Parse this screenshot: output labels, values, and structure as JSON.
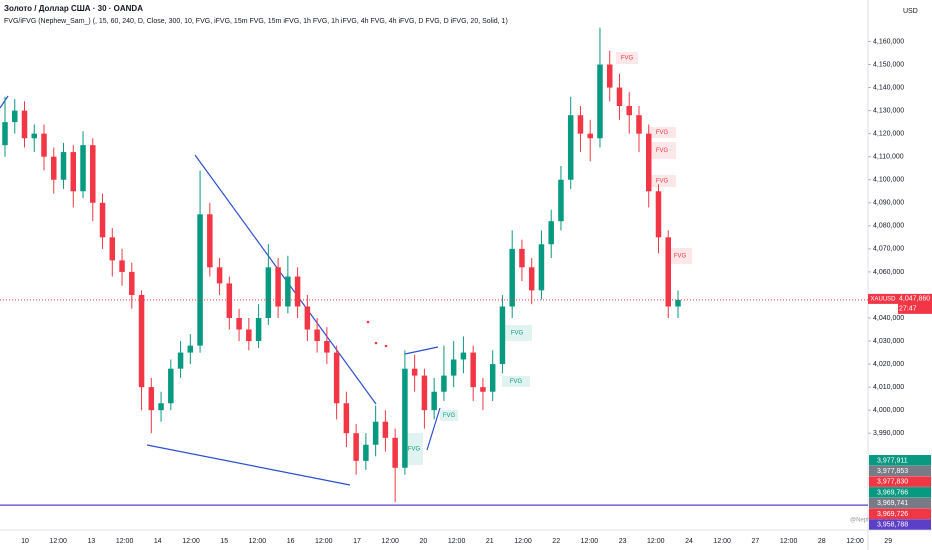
{
  "chart_data": {
    "type": "candlestick",
    "title": "Золото / Доллар США · 30 · OANDA",
    "subtitle": "FVG/iFVG (Nephew_Sam_) (, 15, 60, 240, D, Close, 300, 10, FVG, iFVG, 15m FVG, 15m iFVG, 1h FVG, 1h iFVG, 4h FVG, 4h iFVG, D FVG, D iFVG, 20, Solid, 1)",
    "currency": "USD",
    "watermark": "@Nephew_Sam_",
    "up_color": "#089981",
    "down_color": "#f23645",
    "open": [
      4115,
      4125,
      4130,
      4118,
      4120,
      4110,
      4100,
      4112,
      4095,
      4115,
      4090,
      4075,
      4065,
      4060,
      4050,
      4010,
      4000,
      4003,
      4018,
      4025,
      4028,
      4085,
      4062,
      4055,
      4040,
      4035,
      4030,
      4040,
      4062,
      4045,
      4058,
      4045,
      4035,
      4030,
      4025,
      4003,
      3990,
      3978,
      3985,
      3995,
      3988,
      3975,
      4018,
      4015,
      4000,
      4008,
      4015,
      4022,
      4025,
      4010,
      4008,
      4020,
      4045,
      4070,
      4062,
      4052,
      4072,
      4082,
      4100,
      4128,
      4120,
      4118,
      4150,
      4140,
      4132,
      4128,
      4120,
      4095,
      4075,
      4045
    ],
    "high": [
      4136,
      4135,
      4134,
      4124,
      4124,
      4114,
      4116,
      4115,
      4121,
      4118,
      4094,
      4079,
      4070,
      4064,
      4052,
      4014,
      4008,
      4022,
      4030,
      4033,
      4104,
      4090,
      4066,
      4058,
      4044,
      4040,
      4046,
      4072,
      4066,
      4067,
      4062,
      4050,
      4040,
      4036,
      4028,
      4008,
      3994,
      3990,
      4002,
      4000,
      3992,
      4026,
      4024,
      4018,
      4014,
      4028,
      4030,
      4032,
      4028,
      4014,
      4026,
      4050,
      4078,
      4074,
      4066,
      4078,
      4087,
      4106,
      4136,
      4132,
      4126,
      4166,
      4156,
      4146,
      4138,
      4132,
      4124,
      4098,
      4078,
      4052
    ],
    "low": [
      4110,
      4120,
      4114,
      4112,
      4104,
      4094,
      4096,
      4088,
      4092,
      4082,
      4070,
      4058,
      4054,
      4044,
      4000,
      3990,
      3995,
      4000,
      4014,
      4020,
      4025,
      4058,
      4050,
      4035,
      4030,
      4026,
      4027,
      4037,
      4040,
      4042,
      4040,
      4030,
      4025,
      4020,
      3996,
      3984,
      3972,
      3974,
      3980,
      3982,
      3960,
      3972,
      4008,
      3992,
      3996,
      4004,
      4010,
      4016,
      4004,
      4000,
      4004,
      4016,
      4040,
      4056,
      4046,
      4048,
      4066,
      4078,
      4096,
      4112,
      4108,
      4114,
      4134,
      4126,
      4120,
      4112,
      4088,
      4068,
      4040,
      4040
    ],
    "close": [
      4125,
      4130,
      4118,
      4120,
      4110,
      4100,
      4112,
      4095,
      4115,
      4090,
      4075,
      4065,
      4060,
      4050,
      4010,
      4000,
      4003,
      4018,
      4025,
      4028,
      4085,
      4062,
      4055,
      4040,
      4035,
      4030,
      4040,
      4062,
      4045,
      4058,
      4045,
      4035,
      4030,
      4025,
      4003,
      3990,
      3978,
      3985,
      3995,
      3988,
      3975,
      4018,
      4015,
      4000,
      4008,
      4015,
      4022,
      4025,
      4010,
      4008,
      4020,
      4045,
      4070,
      4062,
      4052,
      4072,
      4082,
      4100,
      4128,
      4120,
      4118,
      4150,
      4140,
      4132,
      4128,
      4120,
      4095,
      4075,
      4045,
      4047.86
    ],
    "ylim": [
      3948,
      4178
    ],
    "yticks": [
      {
        "value": 3990,
        "label": "3,990,000"
      },
      {
        "value": 4000,
        "label": "4,000,000"
      },
      {
        "value": 4010,
        "label": "4,010,000"
      },
      {
        "value": 4020,
        "label": "4,020,000"
      },
      {
        "value": 4030,
        "label": "4,030,000"
      },
      {
        "value": 4040,
        "label": "4,040,000"
      },
      {
        "value": 4060,
        "label": "4,060,000"
      },
      {
        "value": 4070,
        "label": "4,070,000"
      },
      {
        "value": 4080,
        "label": "4,080,000"
      },
      {
        "value": 4090,
        "label": "4,090,000"
      },
      {
        "value": 4100,
        "label": "4,100,000"
      },
      {
        "value": 4110,
        "label": "4,110,000"
      },
      {
        "value": 4120,
        "label": "4,120,000"
      },
      {
        "value": 4130,
        "label": "4,130,000"
      },
      {
        "value": 4140,
        "label": "4,140,000"
      },
      {
        "value": 4150,
        "label": "4,150,000"
      },
      {
        "value": 4160,
        "label": "4,160,000"
      }
    ],
    "xticks": [
      "10",
      "12:00",
      "13",
      "12:00",
      "14",
      "12:00",
      "15",
      "12:00",
      "16",
      "12:00",
      "17",
      "12:00",
      "20",
      "12:00",
      "21",
      "12:00",
      "22",
      "12:00",
      "23",
      "12:00",
      "24",
      "12:00",
      "27",
      "12:00",
      "28",
      "12:00",
      "29"
    ],
    "last_price": {
      "value": 4047.86,
      "label": "4,047,860",
      "symbol": "XAUUSD",
      "countdown": "27:47"
    },
    "horizontal_line": {
      "value": 3958.788,
      "color": "#5b3fc4"
    },
    "price_tags": [
      {
        "label": "3,977,911",
        "color": "#089981"
      },
      {
        "label": "3,977,853",
        "color": "#787b86"
      },
      {
        "label": "3,977,830",
        "color": "#f23645"
      },
      {
        "label": "3,969,766",
        "color": "#089981"
      },
      {
        "label": "3,969,741",
        "color": "#787b86"
      },
      {
        "label": "3,969,726",
        "color": "#f23645"
      },
      {
        "label": "3,958,788",
        "color": "#5b3fc4"
      }
    ],
    "fvg": [
      "FVG",
      "FVG",
      "FVG",
      "FVG",
      "FVG",
      "FVG",
      "FVG",
      "FVG",
      "FVG"
    ]
  }
}
